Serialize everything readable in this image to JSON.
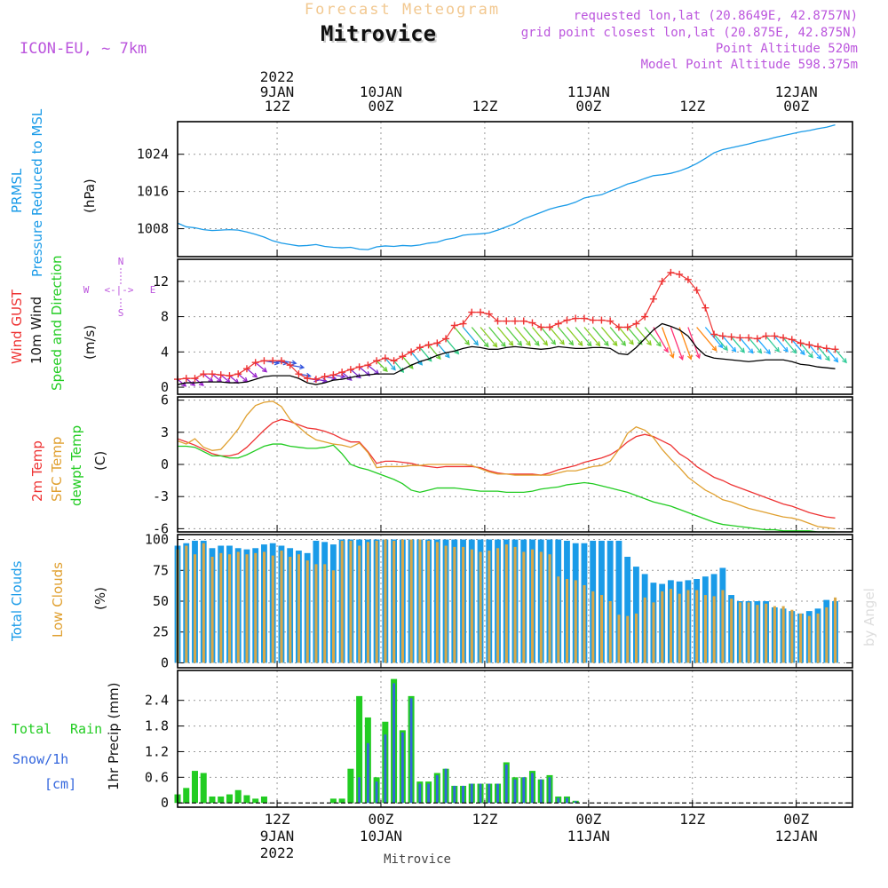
{
  "header": {
    "product": "Forecast Meteogram",
    "location": "Mitrovice",
    "model": "ICON-EU, ~ 7km",
    "requested": "requested lon,lat (20.8649E, 42.8757N)",
    "gridpoint": "grid point closest lon,lat (20.875E, 42.875N)",
    "point_altitude": "Point Altitude 520m",
    "model_altitude": "Model Point Altitude 598.375m",
    "footer": "Mitrovice",
    "watermark": "by Angel"
  },
  "colors": {
    "pressure": "#1a9be8",
    "gust": "#ee3333",
    "wind": "#000000",
    "temp": "#ee3333",
    "sfc": "#e0a030",
    "dewpt": "#22cc22",
    "total_clouds": "#1a9be8",
    "low_clouds": "#d8a848",
    "rain": "#22cc22",
    "snow": "#3366dd",
    "violet": "#bb55dd",
    "grid": "#999999"
  },
  "time_axis": {
    "top_year": "2022",
    "ticks": [
      {
        "t": 0,
        "hour": "12Z",
        "date": "9JAN",
        "year": "2022"
      },
      {
        "t": 12,
        "hour": "00Z",
        "date": "10JAN",
        "year": ""
      },
      {
        "t": 24,
        "hour": "12Z",
        "date": "",
        "year": ""
      },
      {
        "t": 36,
        "hour": "00Z",
        "date": "11JAN",
        "year": ""
      },
      {
        "t": 48,
        "hour": "12Z",
        "date": "",
        "year": ""
      },
      {
        "t": 60,
        "hour": "00Z",
        "date": "12JAN",
        "year": ""
      }
    ]
  },
  "panels": {
    "pressure": {
      "label1": "PRMSL",
      "label2": "Pressure Reduced to MSL",
      "unit": "(hPa)"
    },
    "wind": {
      "label1": "Wind GUST",
      "label2": "10m Wind",
      "label3": "Speed and Direction",
      "unit": "(m/s)",
      "compass_n": "N",
      "compass_s": "S",
      "compass_w": "W",
      "compass_e": "E",
      "compass_mid": "<-|->"
    },
    "temp": {
      "label1": "2m Temp",
      "label2": "SFC Temp",
      "label3": "dewpt Temp",
      "unit": "(C)"
    },
    "clouds": {
      "label1": "Total Clouds",
      "label2": "Low Clouds",
      "unit": "(%)"
    },
    "precip": {
      "label1": "Total",
      "label1b": "Rain",
      "label2": "Snow/1h",
      "label3": "[cm]",
      "unit": "1hr Precip (mm)"
    }
  },
  "chart_data": [
    {
      "type": "line",
      "title": "PRMSL Pressure Reduced to MSL",
      "ylabel": "(hPa)",
      "x_start": -11.5,
      "x_step": 1,
      "ylim": [
        1002,
        1031
      ],
      "yticks": [
        1008,
        1016,
        1024
      ],
      "series": [
        {
          "name": "PRMSL",
          "values": [
            1009.2,
            1008.4,
            1008.2,
            1007.8,
            1007.6,
            1007.7,
            1007.8,
            1007.7,
            1007.3,
            1006.8,
            1006.2,
            1005.4,
            1004.9,
            1004.6,
            1004.3,
            1004.4,
            1004.6,
            1004.2,
            1004,
            1003.9,
            1004,
            1003.6,
            1003.5,
            1004.1,
            1004.3,
            1004.2,
            1004.4,
            1004.3,
            1004.5,
            1004.9,
            1005.1,
            1005.7,
            1006,
            1006.6,
            1006.8,
            1006.9,
            1007.1,
            1007.7,
            1008.4,
            1009.1,
            1010.1,
            1010.8,
            1011.5,
            1012.2,
            1012.7,
            1013.1,
            1013.7,
            1014.6,
            1015.0,
            1015.3,
            1016.1,
            1016.8,
            1017.6,
            1018.1,
            1018.8,
            1019.4,
            1019.6,
            1019.9,
            1020.4,
            1021.1,
            1022.0,
            1023.1,
            1024.3,
            1025.0,
            1025.4,
            1025.8,
            1026.2,
            1026.7,
            1027.1,
            1027.6,
            1028.0,
            1028.4,
            1028.8,
            1029.1,
            1029.5,
            1029.8,
            1030.3
          ]
        }
      ]
    },
    {
      "type": "line",
      "title": "Wind GUST / 10m Wind Speed and Direction",
      "ylabel": "(m/s)",
      "x_start": -11.5,
      "x_step": 1,
      "ylim": [
        -0.8,
        14.5
      ],
      "yticks": [
        0,
        4,
        8,
        12
      ],
      "series": [
        {
          "name": "Wind GUST",
          "marker": "+",
          "values": [
            0.9,
            1.0,
            1.0,
            1.5,
            1.5,
            1.4,
            1.3,
            1.5,
            2.1,
            2.8,
            3.0,
            3.0,
            3.0,
            2.5,
            1.5,
            1.0,
            0.9,
            1.2,
            1.4,
            1.7,
            2.0,
            2.3,
            2.5,
            3.0,
            3.3,
            3.0,
            3.5,
            4.0,
            4.5,
            4.8,
            5.0,
            5.5,
            7.0,
            7.2,
            8.5,
            8.5,
            8.3,
            7.5,
            7.5,
            7.5,
            7.5,
            7.3,
            6.8,
            6.8,
            7.2,
            7.6,
            7.8,
            7.8,
            7.6,
            7.6,
            7.5,
            6.8,
            6.8,
            7.2,
            8.0,
            10.0,
            12.0,
            13.0,
            12.8,
            12.2,
            11.0,
            9.0,
            6.0,
            5.8,
            5.7,
            5.6,
            5.6,
            5.5,
            5.8,
            5.8,
            5.6,
            5.4,
            5.0,
            4.8,
            4.6,
            4.4,
            4.3
          ]
        },
        {
          "name": "10m Wind",
          "values": [
            0.3,
            0.5,
            0.5,
            0.6,
            0.6,
            0.6,
            0.5,
            0.5,
            0.6,
            0.9,
            1.2,
            1.3,
            1.3,
            1.3,
            1.0,
            0.5,
            0.3,
            0.5,
            0.8,
            0.9,
            1.1,
            1.3,
            1.4,
            1.5,
            1.5,
            1.5,
            2.0,
            2.5,
            2.9,
            3.2,
            3.6,
            3.9,
            4.1,
            4.4,
            4.6,
            4.5,
            4.3,
            4.3,
            4.5,
            4.6,
            4.5,
            4.4,
            4.3,
            4.4,
            4.6,
            4.5,
            4.4,
            4.4,
            4.5,
            4.5,
            4.4,
            3.8,
            3.7,
            4.5,
            5.5,
            6.5,
            7.2,
            6.9,
            6.5,
            5.8,
            4.5,
            3.6,
            3.3,
            3.2,
            3.1,
            3.0,
            2.9,
            3.0,
            3.1,
            3.1,
            3.1,
            2.9,
            2.6,
            2.5,
            2.3,
            2.2,
            2.1
          ]
        },
        {
          "name": "Wind direction (towards, deg)",
          "values": [
            130,
            130,
            130,
            130,
            130,
            130,
            130,
            130,
            130,
            130,
            100,
            100,
            100,
            100,
            100,
            100,
            100,
            100,
            100,
            130,
            130,
            130,
            130,
            135,
            140,
            140,
            140,
            140,
            140,
            140,
            140,
            140,
            140,
            140,
            140,
            140,
            140,
            140,
            140,
            140,
            140,
            140,
            140,
            140,
            140,
            140,
            140,
            140,
            140,
            140,
            140,
            140,
            140,
            140,
            140,
            150,
            160,
            160,
            160,
            160,
            140,
            140,
            140,
            140,
            140,
            140,
            140,
            140,
            140,
            140,
            140,
            140,
            140,
            140,
            140,
            140,
            140
          ]
        }
      ]
    },
    {
      "type": "line",
      "title": "2m Temp / SFC Temp / dewpt Temp",
      "ylabel": "(C)",
      "x_start": -11.5,
      "x_step": 1,
      "ylim": [
        -6.3,
        6.3
      ],
      "yticks": [
        -6,
        -3,
        0,
        3,
        6
      ],
      "series": [
        {
          "name": "2m Temp",
          "values": [
            2.4,
            2.1,
            1.8,
            1.4,
            1.0,
            0.8,
            0.8,
            1.0,
            1.6,
            2.4,
            3.2,
            3.9,
            4.2,
            4.0,
            3.7,
            3.4,
            3.3,
            3.1,
            2.8,
            2.4,
            2.1,
            2.1,
            1.2,
            0.1,
            0.3,
            0.3,
            0.2,
            0.1,
            -0.1,
            -0.2,
            -0.3,
            -0.2,
            -0.2,
            -0.2,
            -0.2,
            -0.3,
            -0.6,
            -0.8,
            -0.9,
            -0.9,
            -0.9,
            -0.9,
            -1.0,
            -0.8,
            -0.5,
            -0.3,
            -0.1,
            0.2,
            0.4,
            0.6,
            0.9,
            1.4,
            2.1,
            2.6,
            2.8,
            2.6,
            2.2,
            1.8,
            1.0,
            0.5,
            -0.2,
            -0.7,
            -1.2,
            -1.5,
            -1.9,
            -2.2,
            -2.5,
            -2.8,
            -3.1,
            -3.4,
            -3.7,
            -3.9,
            -4.2,
            -4.5,
            -4.7,
            -4.9,
            -5.0
          ]
        },
        {
          "name": "SFC Temp",
          "values": [
            2.2,
            1.9,
            2.4,
            1.6,
            1.3,
            1.4,
            2.3,
            3.3,
            4.6,
            5.5,
            5.8,
            5.9,
            5.4,
            4.2,
            3.5,
            2.8,
            2.3,
            2.1,
            1.9,
            1.8,
            1.6,
            2.0,
            1.1,
            -0.3,
            -0.2,
            -0.2,
            -0.2,
            -0.1,
            -0.1,
            0.0,
            0.0,
            0.0,
            0.0,
            0.0,
            -0.1,
            -0.4,
            -0.7,
            -0.9,
            -0.9,
            -1.0,
            -1.0,
            -1.0,
            -1.0,
            -1.0,
            -0.8,
            -0.6,
            -0.6,
            -0.4,
            -0.2,
            -0.1,
            0.3,
            1.4,
            2.9,
            3.5,
            3.2,
            2.5,
            1.4,
            0.5,
            -0.3,
            -1.2,
            -1.8,
            -2.4,
            -2.8,
            -3.3,
            -3.5,
            -3.8,
            -4.1,
            -4.3,
            -4.5,
            -4.7,
            -4.9,
            -5.0,
            -5.2,
            -5.5,
            -5.8,
            -5.9,
            -6.0
          ]
        },
        {
          "name": "dewpt Temp",
          "values": [
            1.7,
            1.7,
            1.6,
            1.2,
            0.8,
            0.8,
            0.6,
            0.6,
            0.9,
            1.3,
            1.7,
            1.9,
            1.9,
            1.7,
            1.6,
            1.5,
            1.5,
            1.6,
            1.8,
            1.0,
            0.0,
            -0.3,
            -0.5,
            -0.8,
            -1.1,
            -1.4,
            -1.8,
            -2.4,
            -2.6,
            -2.4,
            -2.2,
            -2.2,
            -2.2,
            -2.3,
            -2.4,
            -2.5,
            -2.5,
            -2.5,
            -2.6,
            -2.6,
            -2.6,
            -2.5,
            -2.3,
            -2.2,
            -2.1,
            -1.9,
            -1.8,
            -1.7,
            -1.8,
            -2.0,
            -2.2,
            -2.4,
            -2.6,
            -2.9,
            -3.2,
            -3.5,
            -3.7,
            -3.9,
            -4.2,
            -4.5,
            -4.8,
            -5.1,
            -5.4,
            -5.6,
            -5.7,
            -5.8,
            -5.9,
            -6.0,
            -6.1,
            -6.1,
            -6.2,
            -6.2,
            -6.2,
            -6.2,
            -6.3,
            -6.3,
            -6.3
          ]
        }
      ]
    },
    {
      "type": "bar",
      "title": "Total Clouds / Low Clouds",
      "ylabel": "(%)",
      "x_start": -11.5,
      "x_step": 1,
      "ylim": [
        -4,
        104
      ],
      "yticks": [
        0,
        25,
        50,
        75,
        100
      ],
      "series": [
        {
          "name": "Total Clouds",
          "values": [
            95,
            97,
            99,
            99,
            93,
            95,
            95,
            93,
            92,
            93,
            96,
            97,
            95,
            93,
            91,
            89,
            99,
            98,
            96,
            100,
            100,
            100,
            100,
            100,
            100,
            100,
            100,
            100,
            100,
            100,
            100,
            100,
            100,
            100,
            100,
            100,
            100,
            100,
            100,
            100,
            100,
            100,
            100,
            100,
            100,
            99,
            97,
            97,
            99,
            99,
            99,
            99,
            86,
            78,
            72,
            65,
            64,
            67,
            66,
            67,
            68,
            70,
            72,
            77,
            55,
            50,
            50,
            50,
            50,
            45,
            44,
            42,
            40,
            42,
            44,
            51,
            50
          ]
        },
        {
          "name": "Low Clouds",
          "values": [
            92,
            95,
            88,
            97,
            86,
            89,
            88,
            90,
            88,
            89,
            90,
            87,
            91,
            86,
            88,
            83,
            80,
            80,
            75,
            99,
            99,
            95,
            98,
            99,
            100,
            99,
            100,
            100,
            100,
            99,
            98,
            95,
            94,
            94,
            92,
            90,
            91,
            93,
            96,
            94,
            90,
            92,
            90,
            88,
            70,
            68,
            67,
            63,
            58,
            55,
            50,
            39,
            38,
            40,
            53,
            49,
            58,
            60,
            56,
            59,
            59,
            55,
            54,
            59,
            52,
            49,
            49,
            47,
            48,
            46,
            46,
            43,
            40,
            38,
            40,
            45,
            53
          ]
        }
      ]
    },
    {
      "type": "bar",
      "title": "Total Rain / Snow/1h [cm]",
      "ylabel": "1hr Precip (mm)",
      "x_start": -11.5,
      "x_step": 1,
      "ylim": [
        -0.1,
        3.1
      ],
      "yticks": [
        0,
        0.6,
        1.2,
        1.8,
        2.4
      ],
      "series": [
        {
          "name": "Total Rain",
          "values": [
            0.2,
            0.35,
            0.75,
            0.7,
            0.15,
            0.15,
            0.2,
            0.3,
            0.18,
            0.1,
            0.15,
            0,
            0,
            0,
            0,
            0,
            0,
            0,
            0.1,
            0.1,
            0.8,
            2.5,
            2.0,
            0.6,
            1.9,
            2.9,
            1.7,
            2.5,
            0.5,
            0.5,
            0.7,
            0.8,
            0.4,
            0.4,
            0.45,
            0.45,
            0.45,
            0.45,
            0.95,
            0.6,
            0.6,
            0.75,
            0.55,
            0.65,
            0.15,
            0.15,
            0.05,
            0,
            0,
            0,
            0,
            0,
            0,
            0,
            0,
            0,
            0,
            0,
            0,
            0,
            0,
            0,
            0,
            0,
            0,
            0,
            0,
            0,
            0,
            0,
            0,
            0,
            0,
            0,
            0,
            0,
            0
          ]
        },
        {
          "name": "Snow/1h",
          "values": [
            0,
            0,
            0,
            0,
            0,
            0,
            0,
            0,
            0,
            0,
            0,
            0,
            0,
            0,
            0,
            0,
            0,
            0,
            0,
            0,
            0,
            0.6,
            1.4,
            0.5,
            1.6,
            2.8,
            1.65,
            2.45,
            0.45,
            0.45,
            0.65,
            0.8,
            0.4,
            0.4,
            0.45,
            0.45,
            0.45,
            0.45,
            0.9,
            0.55,
            0.6,
            0.7,
            0.55,
            0.6,
            0.12,
            0.12,
            0.04,
            0,
            0,
            0,
            0,
            0,
            0,
            0,
            0,
            0,
            0,
            0,
            0,
            0,
            0,
            0,
            0,
            0,
            0,
            0,
            0,
            0,
            0,
            0,
            0,
            0,
            0,
            0,
            0,
            0,
            0
          ]
        }
      ]
    }
  ]
}
